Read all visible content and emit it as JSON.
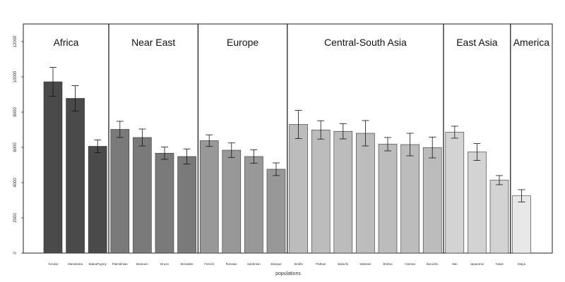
{
  "chart_data": {
    "type": "bar",
    "xlabel": "populations",
    "ylabel": "",
    "ylim": [
      0,
      13000
    ],
    "yticks": [
      0,
      2000,
      4000,
      6000,
      8000,
      10000,
      12000
    ],
    "grid": false,
    "error_bars": true,
    "categories": [
      "Yoruba",
      "Mandenka",
      "BiakaPygmy",
      "Palestinian",
      "Bedouin",
      "Druze",
      "Mozabite",
      "French",
      "Russian",
      "Sardinian",
      "Basque",
      "Sindhi",
      "Pathan",
      "Balochi",
      "Makrani",
      "Brahui",
      "Hazara",
      "Burusho",
      "Han",
      "Japanese",
      "Yakut",
      "Maya"
    ],
    "values": [
      9720,
      8780,
      6060,
      7020,
      6560,
      5670,
      5480,
      6380,
      5840,
      5480,
      4760,
      7300,
      6990,
      6910,
      6800,
      6180,
      6160,
      5990,
      6860,
      5740,
      4140,
      3250
    ],
    "errors": [
      820,
      720,
      360,
      460,
      480,
      350,
      430,
      330,
      410,
      380,
      360,
      800,
      520,
      430,
      720,
      380,
      640,
      590,
      340,
      480,
      260,
      350
    ],
    "groups": [
      {
        "name": "Africa",
        "count": 3,
        "color": "#4a4a4a"
      },
      {
        "name": "Near East",
        "count": 4,
        "color": "#7a7a7a"
      },
      {
        "name": "Europe",
        "count": 4,
        "color": "#989898"
      },
      {
        "name": "Central-South Asia",
        "count": 7,
        "color": "#bcbcbc"
      },
      {
        "name": "East Asia",
        "count": 3,
        "color": "#d3d3d3"
      },
      {
        "name": "America",
        "count": 1,
        "color": "#e8e8e8"
      }
    ]
  }
}
